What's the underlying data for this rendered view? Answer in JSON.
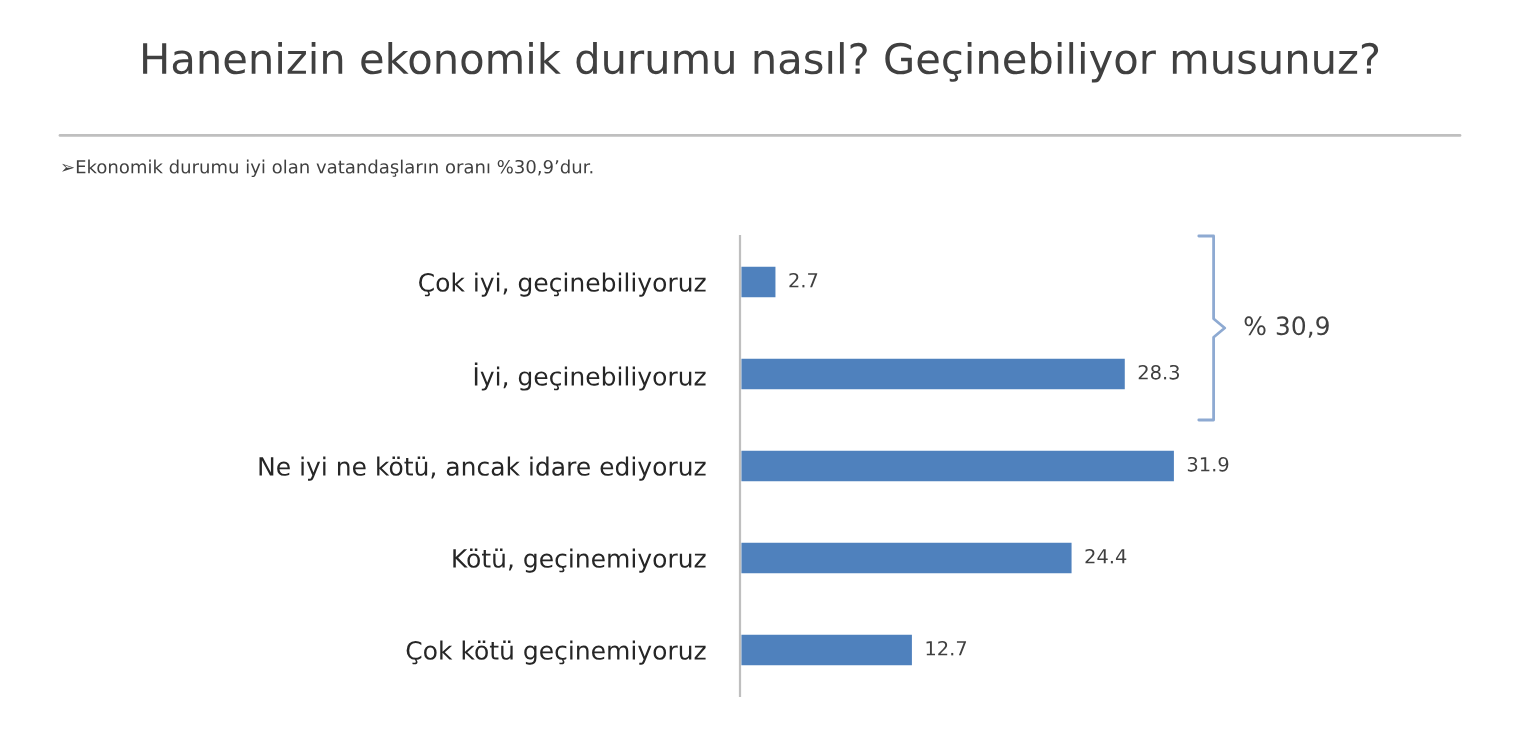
{
  "chart_data": {
    "type": "bar",
    "orientation": "horizontal",
    "title": "Hanenizin ekonomik durumu nasıl? Geçinebiliyor musunuz?",
    "categories": [
      "Çok iyi, geçinebiliyoruz",
      "İyi, geçinebiliyoruz",
      "Ne iyi ne kötü, ancak idare ediyoruz",
      "Kötü, geçinemiyoruz",
      "Çok kötü geçinemiyoruz"
    ],
    "values": [
      2.7,
      28.3,
      31.9,
      24.4,
      12.7
    ],
    "color": "#4f81bd",
    "data_labels": true,
    "grid": false,
    "legend": false,
    "annotations": [
      "➢Ekonomik durumu iyi olan vatandaşların oranı %30,9’dur.",
      "% 30,9"
    ]
  }
}
